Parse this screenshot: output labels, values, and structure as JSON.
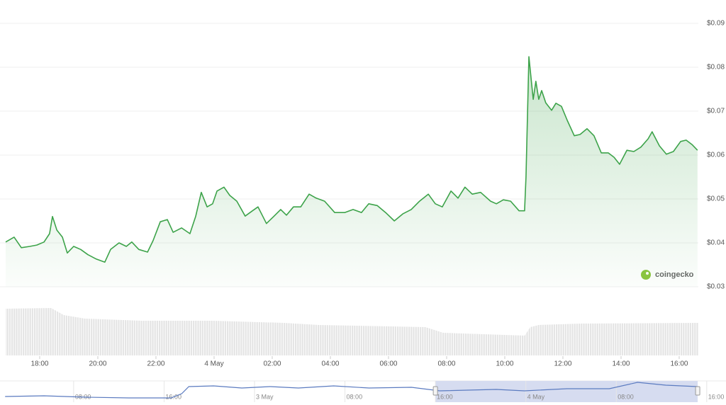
{
  "chart_data": {
    "type": "line",
    "color": "#3da34a",
    "x": [
      16.83,
      17.12,
      17.37,
      17.66,
      17.9,
      18.15,
      18.34,
      18.44,
      18.59,
      18.78,
      18.95,
      19.17,
      19.41,
      19.66,
      19.95,
      20.24,
      20.44,
      20.73,
      20.98,
      21.17,
      21.41,
      21.71,
      21.9,
      22.15,
      22.39,
      22.59,
      22.88,
      23.17,
      23.37,
      23.56,
      23.76,
      23.95,
      24.1,
      24.34,
      24.54,
      24.78,
      25.07,
      25.32,
      25.51,
      25.8,
      26.05,
      26.29,
      26.49,
      26.73,
      26.98,
      27.27,
      27.51,
      27.8,
      28.15,
      28.49,
      28.78,
      29.07,
      29.32,
      29.61,
      29.9,
      30.2,
      30.49,
      30.78,
      31.07,
      31.37,
      31.61,
      31.85,
      32.15,
      32.39,
      32.63,
      32.88,
      33.17,
      33.51,
      33.71,
      33.95,
      34.2,
      34.49,
      34.68,
      34.73,
      34.83,
      34.98,
      35.07,
      35.17,
      35.27,
      35.41,
      35.61,
      35.76,
      35.95,
      36.15,
      36.39,
      36.59,
      36.83,
      37.07,
      37.32,
      37.56,
      37.76,
      37.95,
      38.2,
      38.44,
      38.68,
      38.93,
      39.07,
      39.32,
      39.56,
      39.8,
      40.05,
      40.24,
      40.44,
      40.63
    ],
    "values": [
      0.0402,
      0.0413,
      0.0389,
      0.0392,
      0.0395,
      0.0402,
      0.0421,
      0.046,
      0.0429,
      0.0413,
      0.0377,
      0.0392,
      0.0385,
      0.0373,
      0.0363,
      0.0356,
      0.0385,
      0.04,
      0.0392,
      0.0402,
      0.0385,
      0.0379,
      0.0405,
      0.0448,
      0.0453,
      0.0424,
      0.0434,
      0.0421,
      0.0461,
      0.0515,
      0.0482,
      0.0489,
      0.0518,
      0.0527,
      0.0508,
      0.0495,
      0.0461,
      0.0473,
      0.0482,
      0.0444,
      0.046,
      0.0476,
      0.0463,
      0.0482,
      0.0482,
      0.0511,
      0.0502,
      0.0495,
      0.0469,
      0.0469,
      0.0476,
      0.0469,
      0.0489,
      0.0485,
      0.0469,
      0.045,
      0.0466,
      0.0476,
      0.0495,
      0.0511,
      0.0489,
      0.0482,
      0.0518,
      0.0502,
      0.0527,
      0.0511,
      0.0515,
      0.0495,
      0.0489,
      0.0498,
      0.0495,
      0.0473,
      0.0473,
      0.055,
      0.0824,
      0.0727,
      0.0768,
      0.0727,
      0.0747,
      0.0719,
      0.0702,
      0.0718,
      0.0711,
      0.0679,
      0.0644,
      0.0647,
      0.066,
      0.0644,
      0.0605,
      0.0605,
      0.0595,
      0.0579,
      0.0611,
      0.0608,
      0.0618,
      0.0637,
      0.0653,
      0.0621,
      0.0602,
      0.0608,
      0.0631,
      0.0634,
      0.0624,
      0.0611
    ],
    "xlim": [
      16.83,
      40.83
    ],
    "ylim": [
      0.03,
      0.09
    ],
    "xticks": [
      {
        "value": 18,
        "label": "18:00"
      },
      {
        "value": 20,
        "label": "20:00"
      },
      {
        "value": 22,
        "label": "22:00"
      },
      {
        "value": 24,
        "label": "4 May"
      },
      {
        "value": 26,
        "label": "02:00"
      },
      {
        "value": 28,
        "label": "04:00"
      },
      {
        "value": 30,
        "label": "06:00"
      },
      {
        "value": 32,
        "label": "08:00"
      },
      {
        "value": 34,
        "label": "10:00"
      },
      {
        "value": 36,
        "label": "12:00"
      },
      {
        "value": 38,
        "label": "14:00"
      },
      {
        "value": 40,
        "label": "16:00"
      }
    ],
    "yticks": [
      {
        "value": 0.03,
        "label": "$0.03"
      },
      {
        "value": 0.04,
        "label": "$0.04"
      },
      {
        "value": 0.05,
        "label": "$0.05"
      },
      {
        "value": 0.06,
        "label": "$0.06"
      },
      {
        "value": 0.07,
        "label": "$0.07"
      },
      {
        "value": 0.08,
        "label": "$0.08"
      },
      {
        "value": 0.09,
        "label": "$0.09"
      }
    ],
    "grid": true,
    "watermark": "coingecko",
    "navigator": {
      "x": [
        1.94,
        5.38,
        9.13,
        12.88,
        16.63,
        17.56,
        18.19,
        20.38,
        22.88,
        25.38,
        27.88,
        31.0,
        34.13,
        37.88,
        40.38,
        45.38,
        47.88,
        51.63,
        55.38,
        57.88,
        60.38,
        63.19
      ],
      "values": [
        0.024,
        0.027,
        0.021,
        0.018,
        0.018,
        0.036,
        0.066,
        0.069,
        0.06,
        0.066,
        0.06,
        0.069,
        0.06,
        0.063,
        0.048,
        0.054,
        0.048,
        0.057,
        0.057,
        0.084,
        0.072,
        0.066
      ],
      "xlim": [
        1.8,
        64.2
      ],
      "ylim": [
        0,
        0.09
      ],
      "selection": [
        40,
        63.2
      ],
      "xticks": [
        {
          "value": 8,
          "label": "08:00"
        },
        {
          "value": 16,
          "label": "16:00"
        },
        {
          "value": 24,
          "label": "3 May"
        },
        {
          "value": 32,
          "label": "08:00"
        },
        {
          "value": 40,
          "label": "16:00"
        },
        {
          "value": 48,
          "label": "4 May"
        },
        {
          "value": 56,
          "label": "08:00"
        },
        {
          "value": 64,
          "label": "16:00"
        }
      ]
    }
  }
}
